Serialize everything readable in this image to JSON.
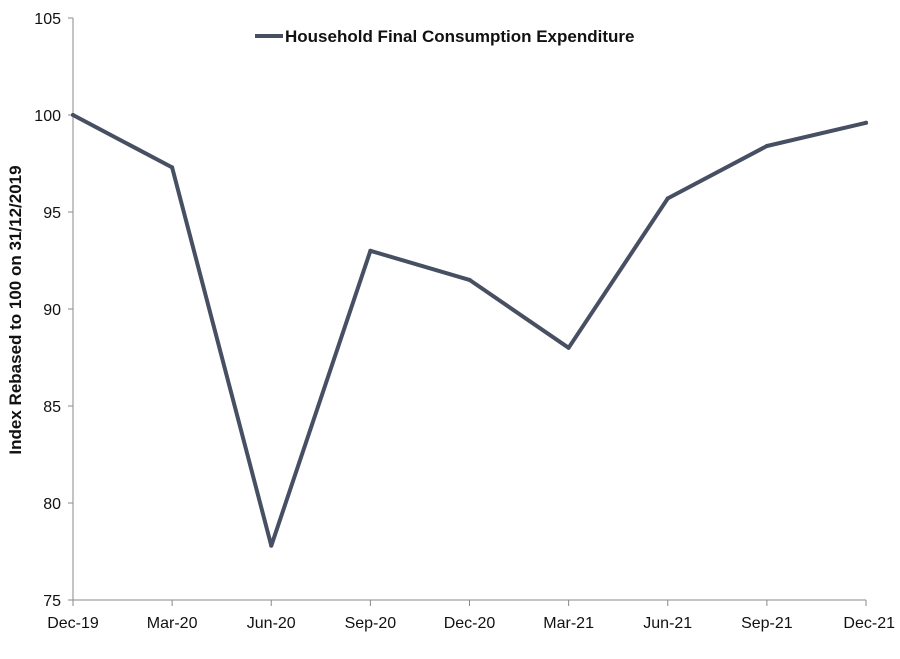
{
  "chart_data": {
    "type": "line",
    "title": "",
    "xlabel": "",
    "ylabel": "Index Rebased to 100 on 31/12/2019",
    "categories": [
      "Dec-19",
      "Mar-20",
      "Jun-20",
      "Sep-20",
      "Dec-20",
      "Mar-21",
      "Jun-21",
      "Sep-21",
      "Dec-21"
    ],
    "ylim": [
      75,
      105
    ],
    "yticks": [
      75,
      80,
      85,
      90,
      95,
      100,
      105
    ],
    "grid": false,
    "legend_position": "top-center",
    "series": [
      {
        "name": "Household Final Consumption Expenditure",
        "color": "#474f63",
        "values": [
          100.0,
          97.3,
          77.8,
          93.0,
          91.5,
          88.0,
          95.7,
          98.4,
          99.6
        ]
      }
    ]
  }
}
